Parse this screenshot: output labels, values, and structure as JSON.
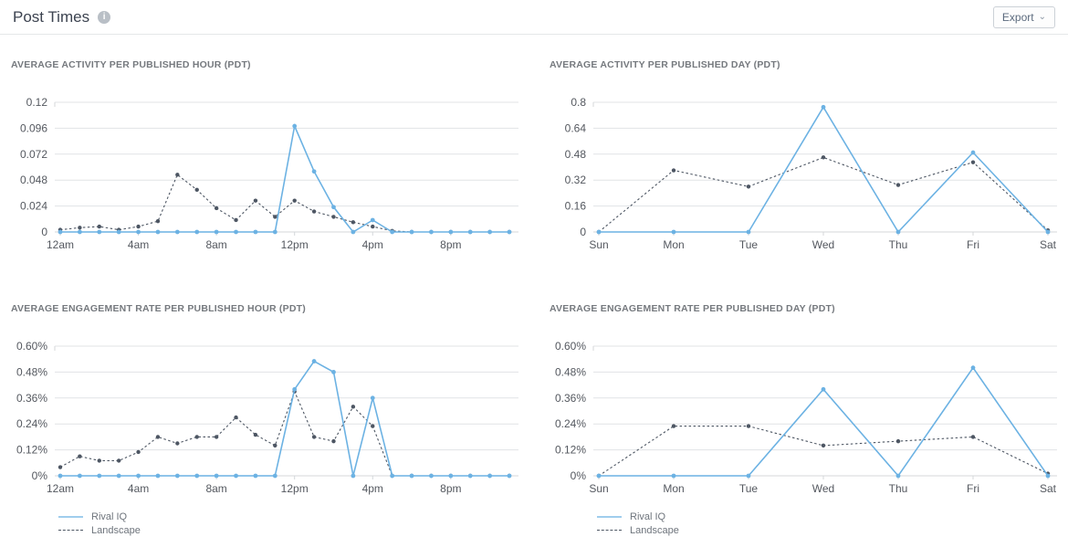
{
  "header": {
    "title": "Post Times",
    "info_icon_glyph": "i",
    "export_label": "Export",
    "export_caret": "⌄"
  },
  "colors": {
    "rival_iq_blue": "#6cb2e3",
    "landscape_dark": "#4d5663",
    "gridline": "#e1e3e6",
    "axis_line": "#d4d7da",
    "axis_text": "#54585f"
  },
  "chart_data": [
    {
      "type": "line",
      "title": "AVERAGE ACTIVITY PER PUBLISHED HOUR (PDT)",
      "categories": [
        "12am",
        "1am",
        "2am",
        "3am",
        "4am",
        "5am",
        "6am",
        "7am",
        "8am",
        "9am",
        "10am",
        "11am",
        "12pm",
        "1pm",
        "2pm",
        "3pm",
        "4pm",
        "5pm",
        "6pm",
        "7pm",
        "8pm",
        "9pm",
        "10pm",
        "11pm"
      ],
      "x_label_every": 4,
      "ylim": [
        0,
        0.12
      ],
      "y_ticks": [
        {
          "value": 0,
          "label": "0"
        },
        {
          "value": 0.024,
          "label": "0.024"
        },
        {
          "value": 0.048,
          "label": "0.048"
        },
        {
          "value": 0.072,
          "label": "0.072"
        },
        {
          "value": 0.096,
          "label": "0.096"
        },
        {
          "value": 0.12,
          "label": "0.12"
        }
      ],
      "grid": true,
      "legend": false,
      "series": [
        {
          "name": "Rival IQ",
          "style": "solid",
          "color": "#6cb2e3",
          "values": [
            0,
            0,
            0,
            0,
            0,
            0,
            0,
            0,
            0,
            0,
            0,
            0,
            0.098,
            0.056,
            0.023,
            0,
            0.011,
            0,
            0,
            0,
            0,
            0,
            0,
            0
          ]
        },
        {
          "name": "Landscape",
          "style": "dashed",
          "color": "#4d5663",
          "values": [
            0.002,
            0.004,
            0.005,
            0.002,
            0.005,
            0.01,
            0.053,
            0.039,
            0.022,
            0.011,
            0.029,
            0.014,
            0.029,
            0.019,
            0.014,
            0.009,
            0.005,
            0.001,
            0,
            0,
            0,
            0,
            0,
            0
          ]
        }
      ]
    },
    {
      "type": "line",
      "title": "AVERAGE ACTIVITY PER PUBLISHED DAY (PDT)",
      "categories": [
        "Sun",
        "Mon",
        "Tue",
        "Wed",
        "Thu",
        "Fri",
        "Sat"
      ],
      "x_label_every": 1,
      "ylim": [
        0,
        0.8
      ],
      "y_ticks": [
        {
          "value": 0,
          "label": "0"
        },
        {
          "value": 0.16,
          "label": "0.16"
        },
        {
          "value": 0.32,
          "label": "0.32"
        },
        {
          "value": 0.48,
          "label": "0.48"
        },
        {
          "value": 0.64,
          "label": "0.64"
        },
        {
          "value": 0.8,
          "label": "0.8"
        }
      ],
      "grid": true,
      "legend": false,
      "series": [
        {
          "name": "Rival IQ",
          "style": "solid",
          "color": "#6cb2e3",
          "values": [
            0,
            0,
            0,
            0.77,
            0,
            0.49,
            0
          ]
        },
        {
          "name": "Landscape",
          "style": "dashed",
          "color": "#4d5663",
          "values": [
            0,
            0.38,
            0.28,
            0.46,
            0.29,
            0.43,
            0.01
          ]
        }
      ]
    },
    {
      "type": "line",
      "title": "AVERAGE ENGAGEMENT RATE PER PUBLISHED HOUR (PDT)",
      "categories": [
        "12am",
        "1am",
        "2am",
        "3am",
        "4am",
        "5am",
        "6am",
        "7am",
        "8am",
        "9am",
        "10am",
        "11am",
        "12pm",
        "1pm",
        "2pm",
        "3pm",
        "4pm",
        "5pm",
        "6pm",
        "7pm",
        "8pm",
        "9pm",
        "10pm",
        "11pm"
      ],
      "x_label_every": 4,
      "ylim": [
        0,
        0.6
      ],
      "y_ticks": [
        {
          "value": 0,
          "label": "0%"
        },
        {
          "value": 0.12,
          "label": "0.12%"
        },
        {
          "value": 0.24,
          "label": "0.24%"
        },
        {
          "value": 0.36,
          "label": "0.36%"
        },
        {
          "value": 0.48,
          "label": "0.48%"
        },
        {
          "value": 0.6,
          "label": "0.60%"
        }
      ],
      "grid": true,
      "legend": true,
      "series": [
        {
          "name": "Rival IQ",
          "style": "solid",
          "color": "#6cb2e3",
          "values": [
            0,
            0,
            0,
            0,
            0,
            0,
            0,
            0,
            0,
            0,
            0,
            0,
            0.4,
            0.53,
            0.48,
            0,
            0.36,
            0,
            0,
            0,
            0,
            0,
            0,
            0
          ]
        },
        {
          "name": "Landscape",
          "style": "dashed",
          "color": "#4d5663",
          "values": [
            0.04,
            0.09,
            0.07,
            0.07,
            0.11,
            0.18,
            0.15,
            0.18,
            0.18,
            0.27,
            0.19,
            0.14,
            0.39,
            0.18,
            0.16,
            0.32,
            0.23,
            0,
            0,
            0,
            0,
            0,
            0,
            0
          ]
        }
      ]
    },
    {
      "type": "line",
      "title": "AVERAGE ENGAGEMENT RATE PER PUBLISHED DAY (PDT)",
      "categories": [
        "Sun",
        "Mon",
        "Tue",
        "Wed",
        "Thu",
        "Fri",
        "Sat"
      ],
      "x_label_every": 1,
      "ylim": [
        0,
        0.6
      ],
      "y_ticks": [
        {
          "value": 0,
          "label": "0%"
        },
        {
          "value": 0.12,
          "label": "0.12%"
        },
        {
          "value": 0.24,
          "label": "0.24%"
        },
        {
          "value": 0.36,
          "label": "0.36%"
        },
        {
          "value": 0.48,
          "label": "0.48%"
        },
        {
          "value": 0.6,
          "label": "0.60%"
        }
      ],
      "grid": true,
      "legend": true,
      "series": [
        {
          "name": "Rival IQ",
          "style": "solid",
          "color": "#6cb2e3",
          "values": [
            0,
            0,
            0,
            0.4,
            0,
            0.5,
            0
          ]
        },
        {
          "name": "Landscape",
          "style": "dashed",
          "color": "#4d5663",
          "values": [
            0,
            0.23,
            0.23,
            0.14,
            0.16,
            0.18,
            0.01
          ]
        }
      ]
    }
  ]
}
